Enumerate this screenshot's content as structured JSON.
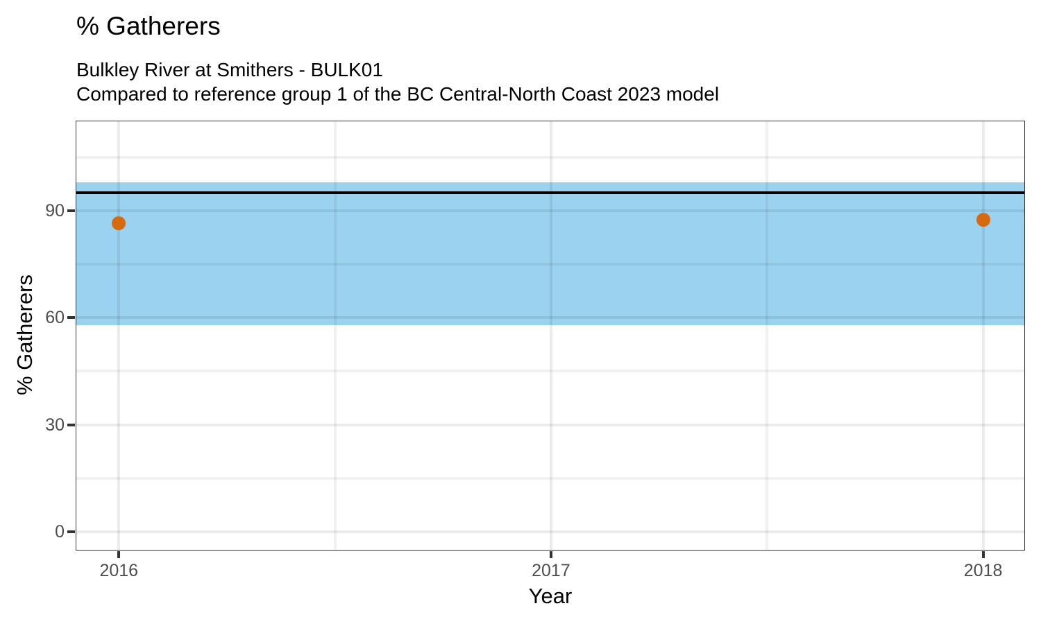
{
  "chart_data": {
    "type": "scatter",
    "title": "% Gatherers",
    "subtitle_lines": [
      "Bulkley River at Smithers - BULK01",
      "Compared to reference group 1 of the BC Central-North Coast 2023 model"
    ],
    "xlabel": "Year",
    "ylabel": "% Gatherers",
    "xlim": [
      2015.9,
      2018.097
    ],
    "ylim": [
      -5.25,
      115.25
    ],
    "x_ticks": [
      {
        "value": 2016,
        "label": "2016"
      },
      {
        "value": 2017,
        "label": "2017"
      },
      {
        "value": 2018,
        "label": "2018"
      }
    ],
    "y_ticks": [
      {
        "value": 0,
        "label": "0"
      },
      {
        "value": 30,
        "label": "30"
      },
      {
        "value": 60,
        "label": "60"
      },
      {
        "value": 90,
        "label": "90"
      }
    ],
    "x_minor": [
      2016.5,
      2017.5
    ],
    "y_minor": [
      15,
      45,
      75,
      105
    ],
    "grid": true,
    "legend": false,
    "reference_band": {
      "low": 58,
      "high": 98
    },
    "reference_line": {
      "value": 95
    },
    "series": [
      {
        "name": "% Gatherers",
        "points": [
          {
            "x": 2016,
            "y": 86.5
          },
          {
            "x": 2018,
            "y": 87.5
          }
        ]
      }
    ]
  },
  "colors": {
    "band": "#9BD2EF",
    "reference_line": "#000000",
    "point": "#D7690F",
    "grid_major": "rgba(0,0,0,0.08)",
    "grid_minor": "rgba(0,0,0,0.055)",
    "axis_text": "#4d4d4d",
    "panel_border": "#333333",
    "background": "#ffffff"
  }
}
